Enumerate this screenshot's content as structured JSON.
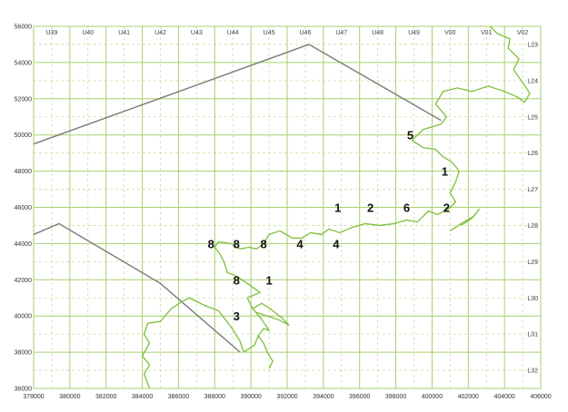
{
  "chart_data": {
    "type": "map",
    "xlim": [
      378000,
      406000
    ],
    "ylim": [
      36000,
      56000
    ],
    "x_ticks": [
      378000,
      380000,
      382000,
      384000,
      386000,
      388000,
      390000,
      392000,
      394000,
      396000,
      398000,
      400000,
      402000,
      404000,
      406000
    ],
    "y_ticks": [
      36000,
      38000,
      40000,
      42000,
      44000,
      46000,
      48000,
      50000,
      52000,
      54000,
      56000
    ],
    "column_labels": [
      {
        "label": "U39",
        "x": 379000
      },
      {
        "label": "U40",
        "x": 381000
      },
      {
        "label": "U41",
        "x": 383000
      },
      {
        "label": "U42",
        "x": 385000
      },
      {
        "label": "U43",
        "x": 387000
      },
      {
        "label": "U44",
        "x": 389000
      },
      {
        "label": "U45",
        "x": 391000
      },
      {
        "label": "U46",
        "x": 393000
      },
      {
        "label": "U47",
        "x": 395000
      },
      {
        "label": "U48",
        "x": 397000
      },
      {
        "label": "U49",
        "x": 399000
      },
      {
        "label": "V00",
        "x": 401000
      },
      {
        "label": "V01",
        "x": 403000
      },
      {
        "label": "V02",
        "x": 405000
      }
    ],
    "row_labels": [
      {
        "label": "L23",
        "y": 55000
      },
      {
        "label": "L24",
        "y": 53000
      },
      {
        "label": "L25",
        "y": 51000
      },
      {
        "label": "L26",
        "y": 49000
      },
      {
        "label": "L27",
        "y": 47000
      },
      {
        "label": "L28",
        "y": 45000
      },
      {
        "label": "L29",
        "y": 43000
      },
      {
        "label": "L30",
        "y": 41000
      },
      {
        "label": "L31",
        "y": 39000
      },
      {
        "label": "L32",
        "y": 37000
      }
    ],
    "site_labels": [
      {
        "text": "8",
        "x": 387800,
        "y": 44000
      },
      {
        "text": "8",
        "x": 389200,
        "y": 44000
      },
      {
        "text": "8",
        "x": 390700,
        "y": 44000
      },
      {
        "text": "4",
        "x": 392700,
        "y": 44000
      },
      {
        "text": "4",
        "x": 394700,
        "y": 44000
      },
      {
        "text": "1",
        "x": 394800,
        "y": 46000
      },
      {
        "text": "2",
        "x": 396600,
        "y": 46000
      },
      {
        "text": "6",
        "x": 398600,
        "y": 46000
      },
      {
        "text": "2",
        "x": 400800,
        "y": 46000
      },
      {
        "text": "1",
        "x": 400700,
        "y": 48000
      },
      {
        "text": "5",
        "x": 398800,
        "y": 50000
      },
      {
        "text": "8",
        "x": 389200,
        "y": 42000
      },
      {
        "text": "1",
        "x": 391000,
        "y": 42000
      },
      {
        "text": "3",
        "x": 389200,
        "y": 40000
      }
    ],
    "boundary_lines": [
      {
        "points": [
          [
            378000,
            49500
          ],
          [
            393200,
            55000
          ],
          [
            400500,
            50800
          ]
        ]
      },
      {
        "points": [
          [
            378000,
            44500
          ],
          [
            379400,
            45100
          ],
          [
            385000,
            41800
          ],
          [
            389400,
            38000
          ]
        ]
      }
    ],
    "coastline": [
      [
        386200,
        40800
      ],
      [
        386600,
        41000
      ],
      [
        387400,
        40600
      ],
      [
        388200,
        40300
      ],
      [
        388900,
        39400
      ],
      [
        389400,
        38600
      ],
      [
        389600,
        38000
      ]
    ],
    "coastline_west": [
      [
        386200,
        40800
      ],
      [
        385600,
        40400
      ],
      [
        385000,
        39700
      ],
      [
        384300,
        39600
      ],
      [
        384100,
        39000
      ],
      [
        384400,
        38500
      ],
      [
        384000,
        37800
      ],
      [
        384400,
        37300
      ],
      [
        384100,
        36800
      ],
      [
        384400,
        36000
      ]
    ],
    "coastline_estuary": [
      [
        389600,
        38000
      ],
      [
        390200,
        38400
      ],
      [
        390400,
        38900
      ],
      [
        390700,
        39300
      ],
      [
        391000,
        39200
      ],
      [
        390600,
        39800
      ],
      [
        390100,
        40400
      ],
      [
        390600,
        40700
      ],
      [
        391200,
        40300
      ],
      [
        391700,
        39900
      ],
      [
        392100,
        39500
      ],
      [
        391500,
        39800
      ],
      [
        390900,
        40000
      ],
      [
        390300,
        40200
      ]
    ],
    "coastline_inland": [
      [
        390400,
        38900
      ],
      [
        390700,
        38500
      ],
      [
        390900,
        38000
      ],
      [
        391200,
        37500
      ],
      [
        391000,
        37100
      ]
    ],
    "coastline_main": [
      [
        390100,
        40400
      ],
      [
        389800,
        41000
      ],
      [
        390500,
        41300
      ],
      [
        389800,
        41800
      ],
      [
        389200,
        42200
      ],
      [
        388700,
        42400
      ],
      [
        388500,
        43000
      ],
      [
        388300,
        43400
      ],
      [
        388000,
        43800
      ],
      [
        388200,
        44100
      ],
      [
        388900,
        44000
      ],
      [
        389400,
        43700
      ],
      [
        389900,
        43800
      ],
      [
        390300,
        43700
      ],
      [
        390700,
        44000
      ],
      [
        391000,
        44500
      ],
      [
        391600,
        44700
      ],
      [
        392300,
        44300
      ],
      [
        392800,
        44300
      ],
      [
        393300,
        44600
      ],
      [
        393900,
        44500
      ],
      [
        394300,
        44800
      ],
      [
        394900,
        44600
      ],
      [
        395600,
        44900
      ],
      [
        396300,
        45100
      ],
      [
        397100,
        45000
      ],
      [
        397900,
        45100
      ],
      [
        398600,
        45300
      ],
      [
        399200,
        45200
      ],
      [
        399800,
        45800
      ],
      [
        400300,
        45600
      ],
      [
        400900,
        45900
      ],
      [
        401300,
        46300
      ],
      [
        401000,
        46800
      ],
      [
        401300,
        47400
      ],
      [
        401500,
        48000
      ],
      [
        401100,
        48500
      ],
      [
        400600,
        48800
      ],
      [
        400200,
        49200
      ],
      [
        399500,
        49300
      ],
      [
        398900,
        49700
      ],
      [
        399500,
        50300
      ],
      [
        400500,
        50600
      ],
      [
        400800,
        51000
      ],
      [
        400200,
        51700
      ],
      [
        400600,
        52400
      ],
      [
        401400,
        52600
      ],
      [
        402200,
        52400
      ],
      [
        403100,
        52700
      ],
      [
        404000,
        52400
      ],
      [
        404700,
        52100
      ],
      [
        405100,
        51800
      ],
      [
        405400,
        52300
      ],
      [
        405000,
        52900
      ],
      [
        404500,
        53600
      ],
      [
        404800,
        54200
      ],
      [
        404200,
        54800
      ],
      [
        404300,
        55300
      ],
      [
        403600,
        55600
      ],
      [
        403200,
        56000
      ]
    ],
    "coastline_southeast": [
      [
        401000,
        44700
      ],
      [
        401600,
        45100
      ],
      [
        402300,
        45500
      ],
      [
        402600,
        45900
      ],
      [
        402200,
        45400
      ],
      [
        401600,
        45000
      ]
    ]
  }
}
